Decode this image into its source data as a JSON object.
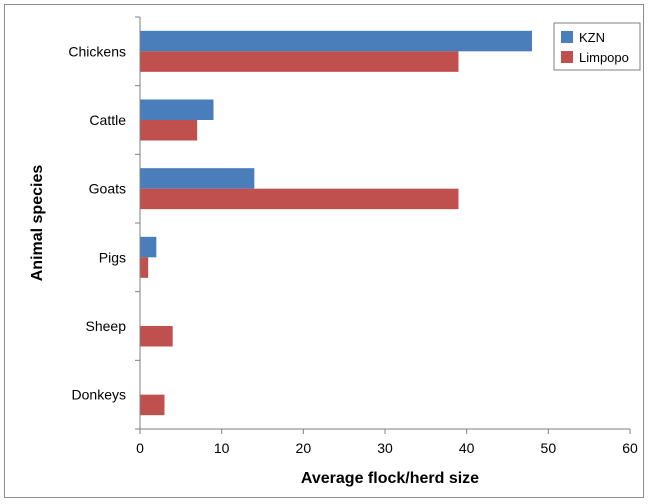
{
  "chart_data": {
    "type": "bar",
    "orientation": "horizontal",
    "categories": [
      "Chickens",
      "Cattle",
      "Goats",
      "Pigs",
      "Sheep",
      "Donkeys"
    ],
    "series": [
      {
        "name": "KZN",
        "color": "#4a7ebb",
        "values": [
          48,
          9,
          14,
          2,
          0,
          0
        ]
      },
      {
        "name": "Limpopo",
        "color": "#c0504d",
        "values": [
          39,
          7,
          39,
          1,
          4,
          3
        ]
      }
    ],
    "xlabel": "Average flock/herd size",
    "ylabel": "Animal species",
    "xlim": [
      0,
      60
    ],
    "xticks": [
      0,
      10,
      20,
      30,
      40,
      50,
      60
    ],
    "grid": false,
    "legend_position": "top-right"
  }
}
